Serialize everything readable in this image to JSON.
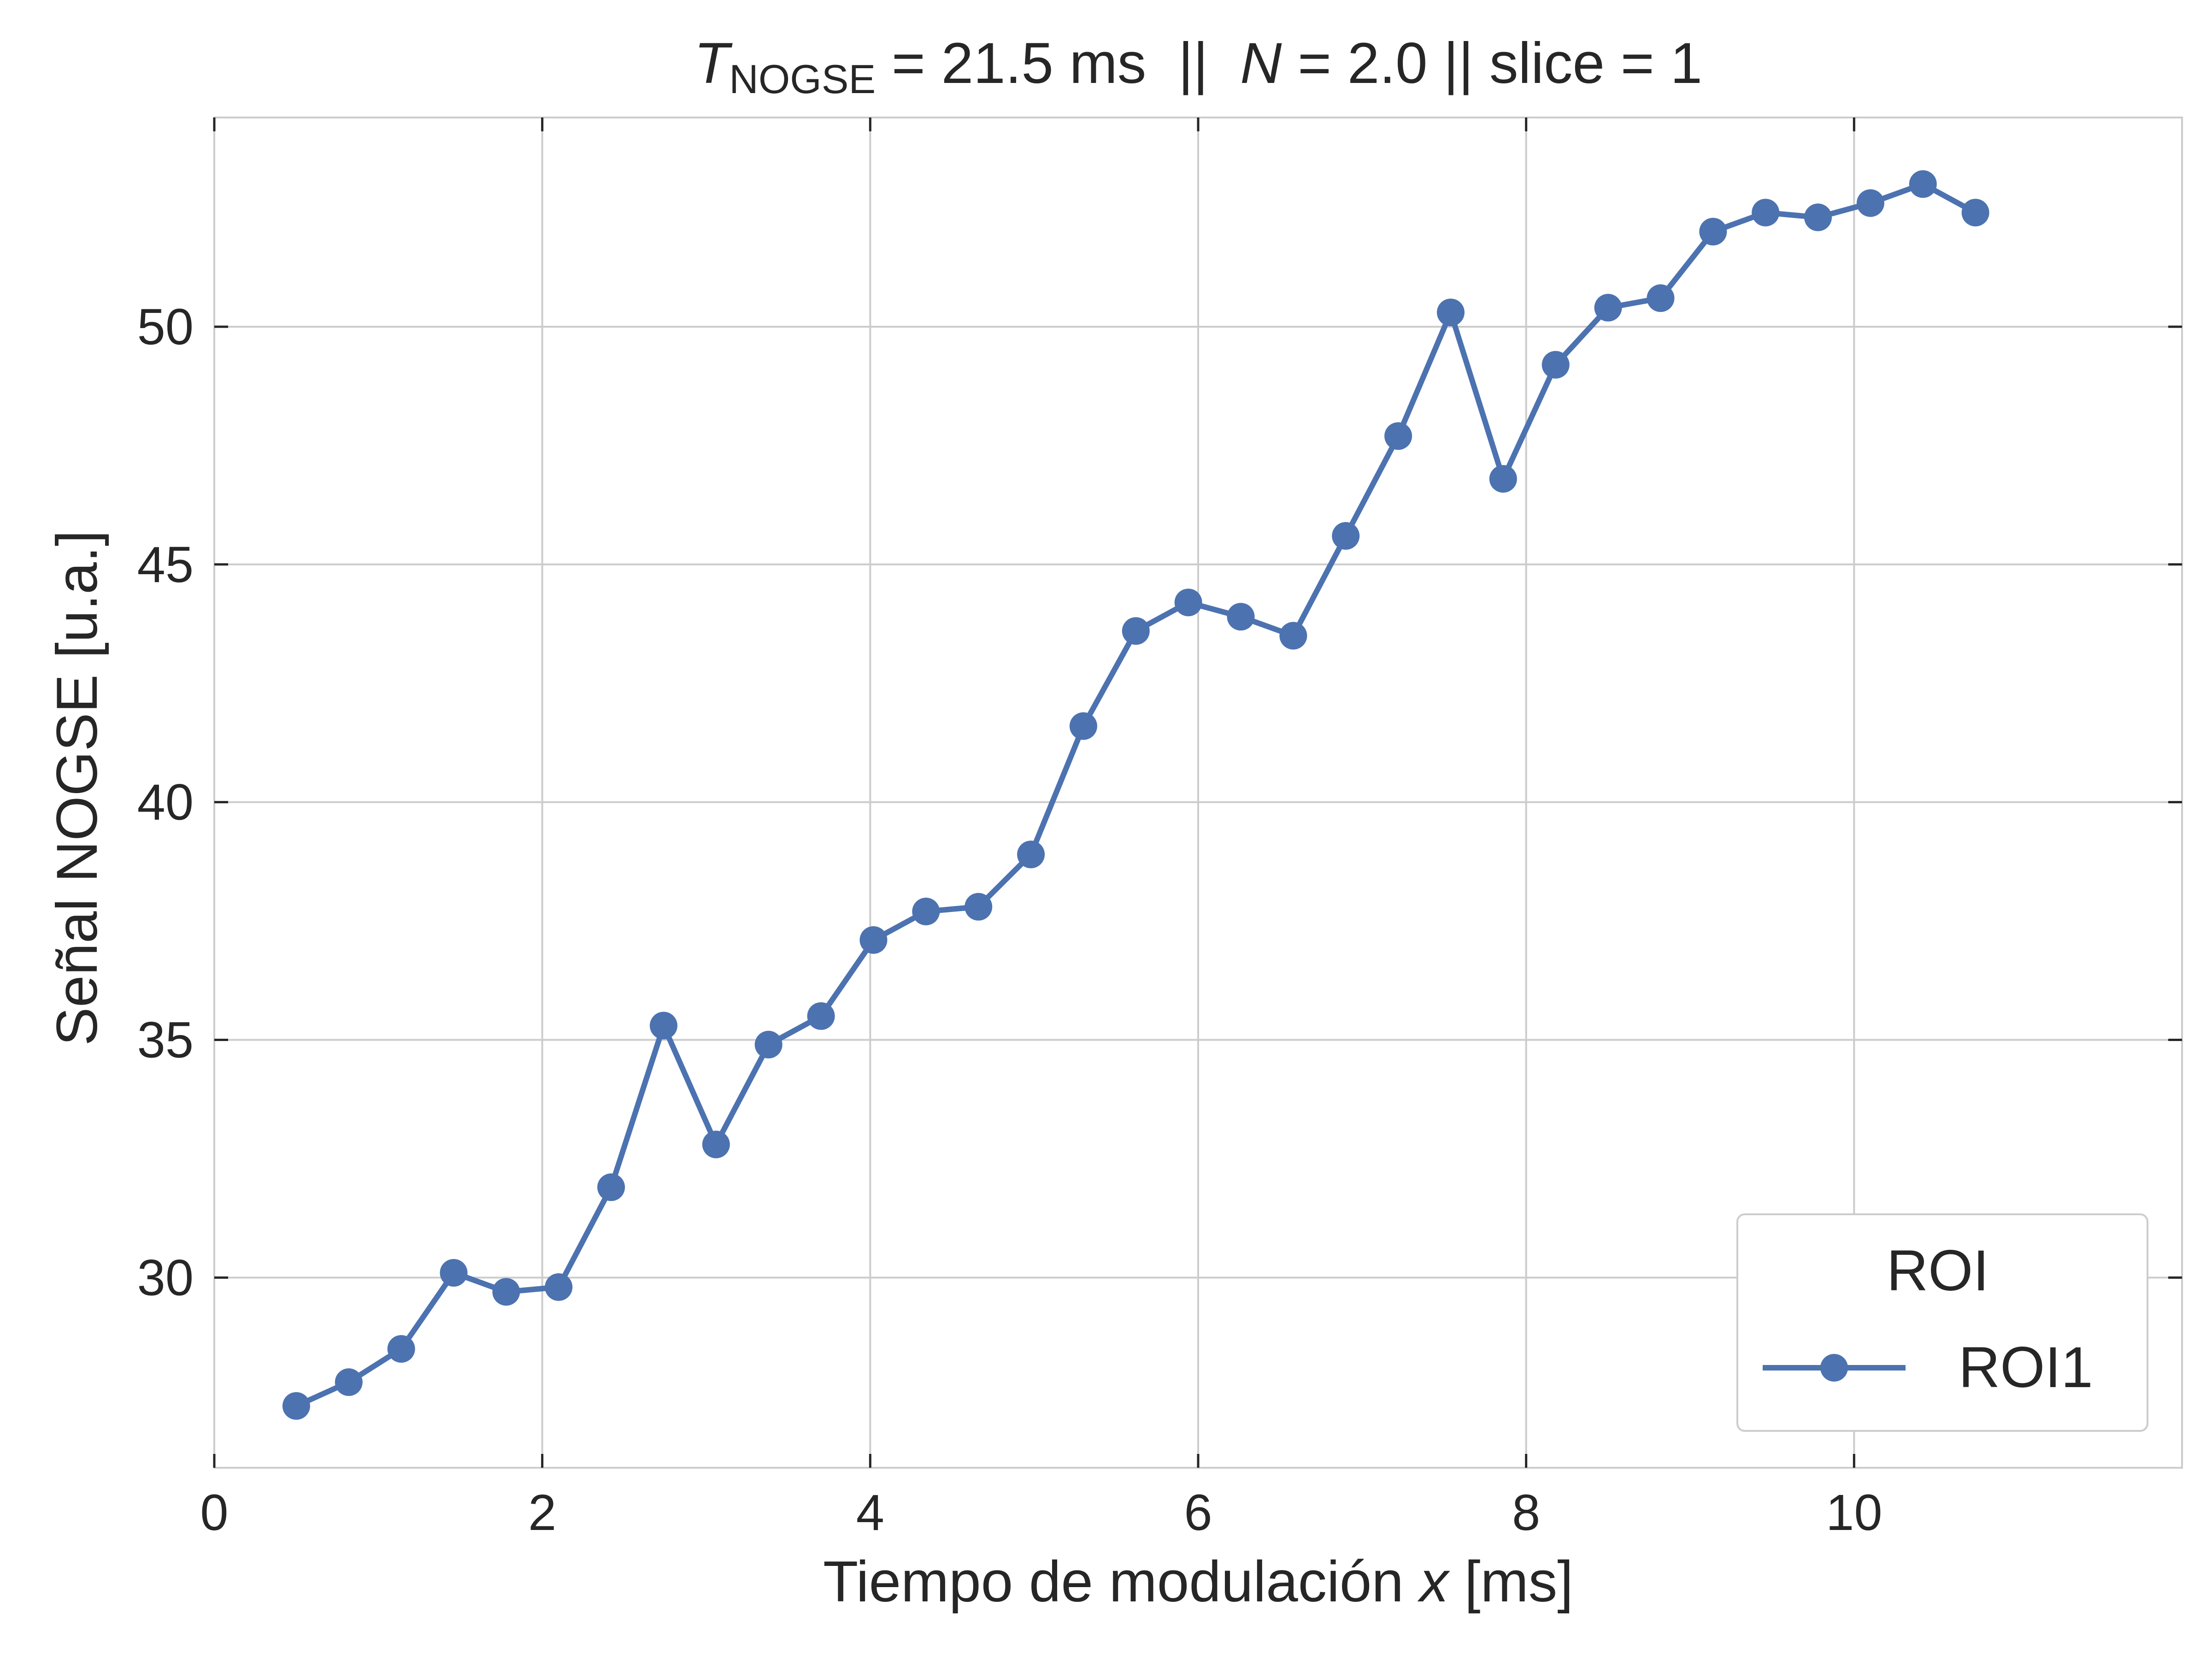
{
  "chart_data": {
    "type": "line",
    "title": {
      "t_symbol": "T",
      "t_subscript": "NOGSE",
      "t_value": " = 21.5 ms  ||  ",
      "n_symbol": "N",
      "rest": " = 2.0 || slice = 1"
    },
    "xlabel": {
      "prefix": "Tiempo de modulación ",
      "var": "x",
      "suffix": " [ms]"
    },
    "ylabel": "Señal NOGSE [u.a.]",
    "xlim": [
      0,
      12.0
    ],
    "ylim": [
      26.0,
      54.4
    ],
    "xticks": [
      0,
      2,
      4,
      6,
      8,
      10
    ],
    "xtick_labels": [
      "0",
      "2",
      "4",
      "6",
      "8",
      "10"
    ],
    "yticks": [
      30,
      35,
      40,
      45,
      50
    ],
    "ytick_labels": [
      "30",
      "35",
      "40",
      "45",
      "50"
    ],
    "grid": true,
    "legend": {
      "title": "ROI",
      "placement": "lower right"
    },
    "series_color": "#4c72b0",
    "series": [
      {
        "name": "ROI1",
        "x": [
          0.5,
          0.82,
          1.14,
          1.46,
          1.78,
          2.1,
          2.42,
          2.74,
          3.06,
          3.38,
          3.7,
          4.02,
          4.34,
          4.66,
          4.98,
          5.3,
          5.62,
          5.94,
          6.26,
          6.58,
          6.9,
          7.22,
          7.54,
          7.86,
          8.18,
          8.5,
          8.82,
          9.14,
          9.46,
          9.78,
          10.1,
          10.42,
          10.74
        ],
        "y": [
          27.3,
          27.8,
          28.5,
          30.1,
          29.7,
          29.8,
          31.9,
          35.3,
          32.8,
          34.9,
          35.5,
          37.1,
          37.7,
          37.8,
          38.9,
          41.6,
          43.6,
          44.2,
          43.9,
          43.5,
          45.6,
          47.7,
          50.3,
          46.8,
          49.2,
          50.4,
          50.6,
          52.0,
          52.4,
          52.3,
          52.6,
          53.0,
          52.4
        ]
      }
    ]
  }
}
